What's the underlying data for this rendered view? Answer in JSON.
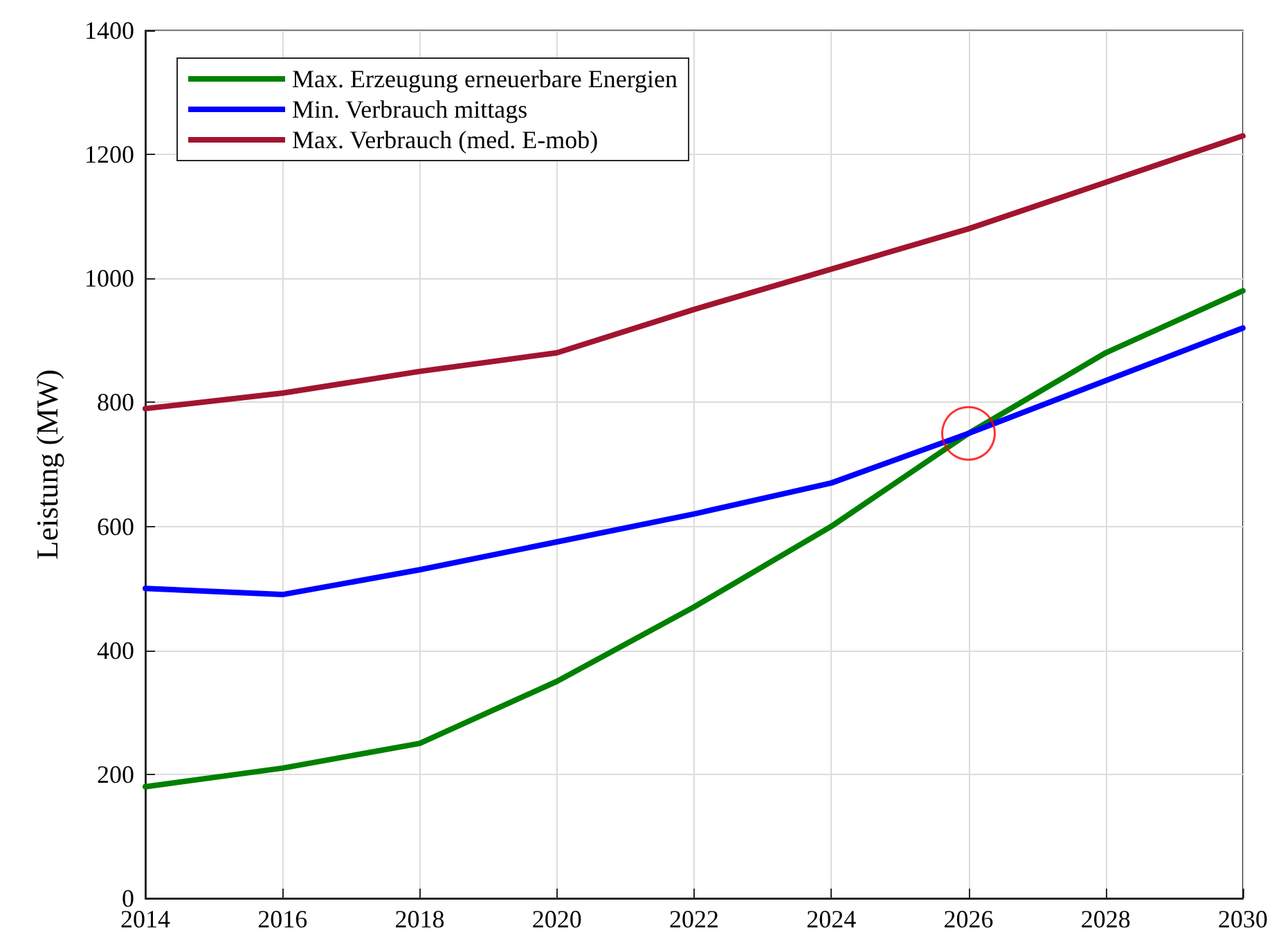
{
  "chart_data": {
    "type": "line",
    "ylabel": "Leistung (MW)",
    "x": [
      2014,
      2016,
      2018,
      2020,
      2022,
      2024,
      2026,
      2028,
      2030
    ],
    "xlim": [
      2014,
      2030
    ],
    "xticks": [
      2014,
      2016,
      2018,
      2020,
      2022,
      2024,
      2026,
      2028,
      2030
    ],
    "ylim": [
      0,
      1400
    ],
    "yticks": [
      0,
      200,
      400,
      600,
      800,
      1000,
      1200,
      1400
    ],
    "grid": true,
    "legend": "top left",
    "line_style": "solid",
    "series": [
      {
        "name": "Max. Erzeugung erneuerbare Energien",
        "color": "#008000",
        "values": [
          180,
          210,
          250,
          350,
          470,
          600,
          750,
          880,
          980
        ]
      },
      {
        "name": "Min. Verbrauch mittags",
        "color": "#0000ff",
        "values": [
          500,
          490,
          530,
          575,
          620,
          670,
          750,
          835,
          920
        ]
      },
      {
        "name": "Max. Verbrauch (med. E-mob)",
        "color": "#a2142f",
        "values": [
          790,
          815,
          850,
          880,
          950,
          1015,
          1080,
          1155,
          1230
        ]
      },
      {
        "type": "scatter",
        "marker": "circle",
        "color": "#ff0000",
        "x": [
          2026
        ],
        "values": [
          750
        ]
      }
    ]
  }
}
